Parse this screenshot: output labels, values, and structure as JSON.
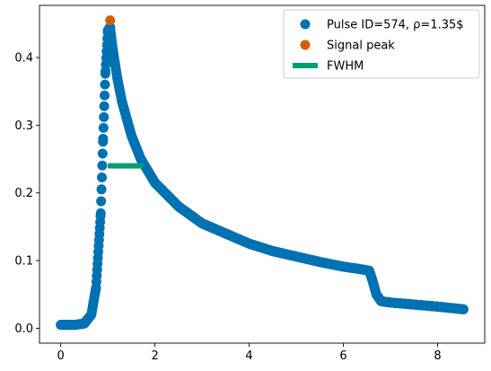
{
  "chart_data": {
    "type": "scatter",
    "title": "",
    "xlabel": "",
    "ylabel": "",
    "xlim": [
      -0.45,
      9.0
    ],
    "ylim": [
      -0.022,
      0.477
    ],
    "xticks": [
      0,
      2,
      4,
      6,
      8
    ],
    "yticks": [
      0.0,
      0.1,
      0.2,
      0.3,
      0.4
    ],
    "xtick_labels": [
      "0",
      "2",
      "4",
      "6",
      "8"
    ],
    "ytick_labels": [
      "0.0",
      "0.1",
      "0.2",
      "0.3",
      "0.4"
    ],
    "grid": false,
    "legend_position": "top-right",
    "series": [
      {
        "name": "Pulse ID=574, ρ=1.35$",
        "kind": "scatter",
        "color": "#0072b2",
        "x": [
          0.0,
          0.3,
          0.5,
          0.65,
          0.75,
          0.85,
          0.9,
          0.95,
          1.0,
          1.05,
          1.1,
          1.2,
          1.3,
          1.5,
          1.7,
          2.0,
          2.5,
          3.0,
          3.5,
          4.0,
          4.5,
          5.0,
          5.5,
          6.0,
          6.3,
          6.55,
          6.62,
          6.7,
          6.8,
          7.0,
          7.5,
          8.0,
          8.55
        ],
        "y": [
          0.005,
          0.005,
          0.007,
          0.02,
          0.06,
          0.17,
          0.28,
          0.38,
          0.44,
          0.445,
          0.415,
          0.37,
          0.335,
          0.285,
          0.25,
          0.215,
          0.18,
          0.155,
          0.14,
          0.125,
          0.114,
          0.106,
          0.098,
          0.091,
          0.088,
          0.085,
          0.07,
          0.05,
          0.04,
          0.038,
          0.035,
          0.032,
          0.028
        ]
      },
      {
        "name": "Signal peak",
        "kind": "scatter",
        "color": "#d55e00",
        "x": [
          1.05
        ],
        "y": [
          0.455
        ]
      },
      {
        "name": "FWHM",
        "kind": "line",
        "color": "#009e73",
        "x": [
          1.0,
          1.75
        ],
        "y": [
          0.24,
          0.24
        ]
      }
    ]
  }
}
